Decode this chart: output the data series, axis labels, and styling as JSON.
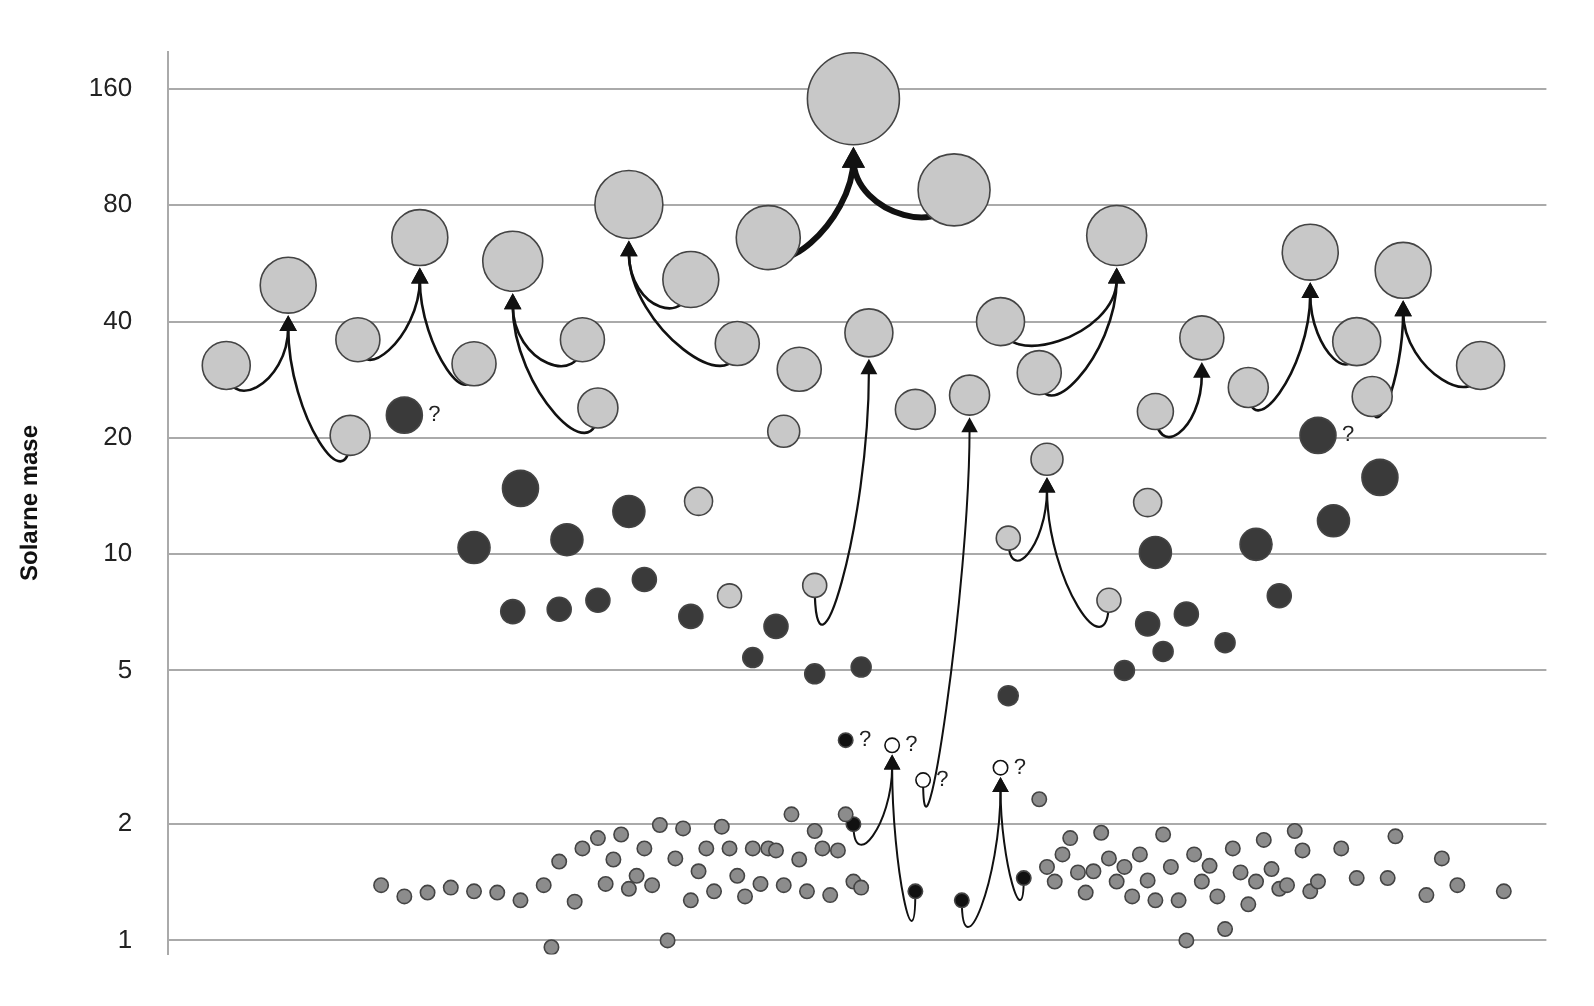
{
  "chart_data": {
    "type": "bubble",
    "ylabel": "Solarne mase",
    "log": "y",
    "grid": "y",
    "legend": false,
    "tick_labels": "y",
    "marker": "circle",
    "ylim": [
      0.92,
      200
    ],
    "yticks": [
      1,
      2,
      5,
      10,
      20,
      40,
      80,
      160
    ],
    "categories": [
      null,
      null,
      null,
      null,
      null,
      null,
      null,
      null,
      null,
      null,
      null,
      null,
      null,
      null,
      null,
      null,
      null,
      null,
      null,
      null,
      null,
      null,
      null,
      null,
      null,
      null,
      null,
      null,
      null,
      null,
      null,
      null,
      null,
      null,
      null,
      null,
      null,
      null,
      null,
      null,
      null,
      null,
      null,
      null,
      null,
      null,
      null,
      null,
      null,
      null,
      null,
      null,
      null,
      null,
      null,
      null,
      null,
      null,
      null,
      null,
      null,
      null,
      null,
      null,
      null,
      null,
      null,
      null,
      null,
      null,
      null,
      null,
      null,
      null,
      null,
      null,
      null,
      null,
      null,
      null,
      null,
      null,
      null,
      null,
      null,
      null,
      null,
      null,
      null,
      null,
      null,
      null,
      null,
      null,
      null,
      null,
      null,
      null,
      null,
      null,
      null,
      null,
      null,
      null,
      null,
      null,
      null,
      null,
      null,
      null,
      null,
      null,
      null,
      null,
      null,
      null,
      null,
      null,
      null,
      null,
      null,
      null,
      null,
      null,
      null,
      null,
      null,
      null,
      null,
      null,
      null,
      null,
      null,
      null,
      null,
      null,
      null,
      null,
      null,
      null,
      null,
      null,
      null,
      null,
      null,
      null,
      null,
      null,
      null,
      null,
      null,
      null,
      null,
      null,
      null,
      null,
      null,
      null,
      null,
      null,
      null,
      null,
      null,
      null,
      null,
      null,
      null,
      null,
      null,
      null,
      null,
      null,
      null,
      null,
      null,
      null,
      null,
      null
    ],
    "series": [
      {
        "color": "#c8c8c8",
        "values": [
          null,
          null,
          null,
          null,
          null,
          null,
          null,
          30.8,
          null,
          null,
          null,
          null,
          null,
          null,
          null,
          49.7,
          null,
          null,
          null,
          null,
          null,
          null,
          null,
          20.3,
          35.9,
          null,
          null,
          null,
          null,
          null,
          null,
          null,
          66,
          null,
          null,
          null,
          null,
          null,
          null,
          31.1,
          null,
          null,
          null,
          null,
          57.3,
          null,
          null,
          null,
          null,
          null,
          null,
          null,
          null,
          35.9,
          null,
          23.9,
          null,
          null,
          null,
          80.4,
          null,
          null,
          null,
          null,
          null,
          null,
          null,
          51.4,
          13.7,
          null,
          null,
          null,
          7.8,
          35.1,
          null,
          null,
          null,
          66,
          null,
          20.8,
          null,
          30.1,
          null,
          8.3,
          null,
          null,
          null,
          null,
          151,
          null,
          37.4,
          null,
          null,
          null,
          null,
          null,
          23.7,
          null,
          null,
          null,
          null,
          87.7,
          null,
          25.8,
          null,
          null,
          null,
          40,
          11,
          null,
          null,
          null,
          29.5,
          17.6,
          null,
          null,
          null,
          null,
          null,
          null,
          null,
          7.6,
          66.8,
          null,
          null,
          null,
          13.6,
          23.4,
          null,
          null,
          null,
          null,
          null,
          36.3,
          null,
          null,
          null,
          null,
          null,
          27,
          null,
          null,
          null,
          null,
          null,
          null,
          null,
          60.5,
          null,
          null,
          null,
          null,
          null,
          35.5,
          null,
          25.6,
          null,
          null,
          null,
          54.3,
          null,
          null,
          null,
          null,
          null,
          null,
          null,
          null,
          null,
          30.8,
          null,
          null,
          null,
          null,
          null,
          null,
          null,
          null
        ],
        "sizes": [
          null,
          null,
          null,
          null,
          null,
          null,
          null,
          0.272,
          null,
          null,
          null,
          null,
          null,
          null,
          null,
          0.37,
          null,
          null,
          null,
          null,
          null,
          null,
          null,
          0.189,
          0.229,
          null,
          null,
          null,
          null,
          null,
          null,
          null,
          0.37,
          null,
          null,
          null,
          null,
          null,
          null,
          0.229,
          null,
          null,
          null,
          null,
          0.425,
          null,
          null,
          null,
          null,
          null,
          null,
          null,
          null,
          0.229,
          null,
          0.189,
          null,
          null,
          null,
          0.546,
          null,
          null,
          null,
          null,
          null,
          null,
          null,
          0.37,
          0.093,
          null,
          null,
          null,
          0.068,
          0.229,
          null,
          null,
          null,
          0.484,
          null,
          0.121,
          null,
          0.229,
          null,
          0.068,
          null,
          null,
          null,
          null,
          1,
          null,
          0.272,
          null,
          null,
          null,
          null,
          null,
          0.189,
          null,
          null,
          null,
          null,
          0.612,
          null,
          0.189,
          null,
          null,
          null,
          0.272,
          0.068,
          null,
          null,
          null,
          0.229,
          0.121,
          null,
          null,
          null,
          null,
          null,
          null,
          null,
          0.068,
          0.425,
          null,
          null,
          null,
          0.093,
          0.153,
          null,
          null,
          null,
          null,
          null,
          0.229,
          null,
          null,
          null,
          null,
          null,
          0.189,
          null,
          null,
          null,
          null,
          null,
          null,
          null,
          0.37,
          null,
          null,
          null,
          null,
          null,
          0.272,
          null,
          0.189,
          null,
          null,
          null,
          0.37,
          null,
          null,
          null,
          null,
          null,
          null,
          null,
          null,
          null,
          0.272,
          null,
          null,
          null,
          null,
          null,
          null,
          null,
          null
        ]
      },
      {
        "color": "#3a3a3a",
        "values": [
          null,
          null,
          null,
          null,
          null,
          null,
          null,
          null,
          null,
          null,
          null,
          null,
          null,
          null,
          null,
          null,
          null,
          null,
          null,
          null,
          null,
          null,
          null,
          null,
          null,
          null,
          null,
          null,
          null,
          null,
          22.9,
          null,
          null,
          null,
          null,
          null,
          null,
          null,
          null,
          10.4,
          null,
          null,
          null,
          null,
          7.1,
          14.8,
          null,
          null,
          null,
          null,
          7.2,
          10.9,
          null,
          null,
          null,
          7.6,
          null,
          null,
          null,
          12.9,
          null,
          8.6,
          null,
          null,
          null,
          null,
          null,
          6.9,
          null,
          null,
          null,
          null,
          null,
          null,
          null,
          5.4,
          null,
          null,
          6.5,
          null,
          null,
          null,
          null,
          4.9,
          null,
          null,
          null,
          null,
          null,
          5.1,
          null,
          null,
          null,
          null,
          null,
          null,
          null,
          null,
          null,
          null,
          null,
          null,
          null,
          null,
          null,
          null,
          null,
          null,
          4.3,
          null,
          null,
          null,
          null,
          null,
          null,
          null,
          null,
          null,
          null,
          null,
          null,
          null,
          null,
          5,
          null,
          null,
          6.6,
          10.1,
          5.6,
          null,
          null,
          7,
          null,
          null,
          null,
          null,
          5.9,
          null,
          null,
          null,
          10.6,
          null,
          null,
          7.8,
          null,
          null,
          null,
          null,
          20.3,
          null,
          12.2,
          null,
          null,
          null,
          null,
          null,
          15.8,
          null,
          null,
          null,
          null,
          null,
          null,
          null,
          null,
          null,
          null,
          null,
          null,
          null,
          null,
          null,
          null,
          null,
          null,
          null,
          null,
          null
        ],
        "sizes": [
          null,
          null,
          null,
          null,
          null,
          null,
          null,
          null,
          null,
          null,
          null,
          null,
          null,
          null,
          null,
          null,
          null,
          null,
          null,
          null,
          null,
          null,
          null,
          null,
          null,
          null,
          null,
          null,
          null,
          null,
          0.153,
          null,
          null,
          null,
          null,
          null,
          null,
          null,
          null,
          0.121,
          null,
          null,
          null,
          null,
          0.068,
          0.153,
          null,
          null,
          null,
          null,
          0.068,
          0.121,
          null,
          null,
          null,
          0.068,
          null,
          null,
          null,
          0.121,
          null,
          0.068,
          null,
          null,
          null,
          null,
          null,
          0.068,
          null,
          null,
          null,
          null,
          null,
          null,
          null,
          0.047,
          null,
          null,
          0.068,
          null,
          null,
          null,
          null,
          0.047,
          null,
          null,
          null,
          null,
          null,
          0.047,
          null,
          null,
          null,
          null,
          null,
          null,
          null,
          null,
          null,
          null,
          null,
          null,
          null,
          null,
          null,
          null,
          null,
          null,
          0.047,
          null,
          null,
          null,
          null,
          null,
          null,
          null,
          null,
          null,
          null,
          null,
          null,
          null,
          null,
          0.047,
          null,
          null,
          0.068,
          0.121,
          0.047,
          null,
          null,
          0.068,
          null,
          null,
          null,
          null,
          0.047,
          null,
          null,
          null,
          0.121,
          null,
          null,
          0.068,
          null,
          null,
          null,
          null,
          0.153,
          null,
          0.121,
          null,
          null,
          null,
          null,
          null,
          0.153,
          null,
          null,
          null,
          null,
          null,
          null,
          null,
          null,
          null,
          null,
          null,
          null,
          null,
          null,
          null,
          null,
          null,
          null,
          null,
          null,
          null
        ],
        "value_labels": [
          null,
          null,
          null,
          null,
          null,
          null,
          null,
          null,
          null,
          null,
          null,
          null,
          null,
          null,
          null,
          null,
          null,
          null,
          null,
          null,
          null,
          null,
          null,
          null,
          null,
          null,
          null,
          null,
          null,
          null,
          "?",
          null,
          null,
          null,
          null,
          null,
          null,
          null,
          null,
          null,
          null,
          null,
          null,
          null,
          null,
          null,
          null,
          null,
          null,
          null,
          null,
          null,
          null,
          null,
          null,
          null,
          null,
          null,
          null,
          null,
          null,
          null,
          null,
          null,
          null,
          null,
          null,
          null,
          null,
          null,
          null,
          null,
          null,
          null,
          null,
          null,
          null,
          null,
          null,
          null,
          null,
          null,
          null,
          null,
          null,
          null,
          null,
          null,
          null,
          null,
          null,
          null,
          null,
          null,
          null,
          null,
          null,
          null,
          null,
          null,
          null,
          null,
          null,
          null,
          null,
          null,
          null,
          null,
          null,
          null,
          null,
          null,
          null,
          null,
          null,
          null,
          null,
          null,
          null,
          null,
          null,
          null,
          null,
          null,
          null,
          null,
          null,
          null,
          null,
          null,
          null,
          null,
          null,
          null,
          null,
          null,
          null,
          null,
          null,
          null,
          null,
          null,
          null,
          null,
          null,
          null,
          null,
          null,
          "?",
          null,
          null,
          null,
          null,
          null,
          null,
          null,
          null,
          null,
          null,
          null,
          null,
          null,
          null,
          null,
          null,
          null,
          null,
          null,
          null,
          null,
          null,
          null,
          null,
          null,
          null,
          null,
          null,
          null
        ]
      },
      {
        "type": "scatter",
        "color": "#8c8c8c",
        "values": [
          null,
          null,
          null,
          null,
          null,
          null,
          null,
          null,
          null,
          null,
          null,
          null,
          null,
          null,
          null,
          null,
          null,
          null,
          null,
          null,
          null,
          null,
          null,
          null,
          null,
          null,
          null,
          1.39,
          null,
          null,
          1.3,
          null,
          null,
          1.33,
          null,
          null,
          1.37,
          null,
          null,
          1.34,
          null,
          null,
          1.33,
          null,
          null,
          1.27,
          null,
          null,
          1.39,
          0.96,
          1.6,
          null,
          1.26,
          1.73,
          null,
          1.84,
          1.4,
          1.62,
          1.88,
          1.36,
          1.47,
          1.73,
          1.39,
          1.99,
          1,
          1.63,
          1.95,
          1.27,
          1.51,
          1.73,
          1.34,
          1.97,
          1.73,
          1.47,
          1.3,
          1.73,
          1.4,
          1.73,
          1.71,
          1.39,
          2.12,
          1.62,
          1.34,
          1.92,
          1.73,
          1.31,
          1.71,
          2.12,
          1.42,
          1.37,
          null,
          null,
          null,
          null,
          null,
          null,
          null,
          null,
          null,
          null,
          null,
          null,
          null,
          null,
          null,
          null,
          null,
          null,
          null,
          null,
          null,
          null,
          2.32,
          1.55,
          1.42,
          1.67,
          1.84,
          1.5,
          1.33,
          1.51,
          1.9,
          1.63,
          1.42,
          1.55,
          1.3,
          1.67,
          1.43,
          1.27,
          1.88,
          1.55,
          1.27,
          1,
          1.67,
          1.42,
          1.56,
          1.3,
          1.07,
          1.73,
          1.5,
          1.24,
          1.42,
          1.82,
          1.53,
          1.36,
          1.39,
          1.92,
          1.71,
          1.34,
          1.42,
          null,
          null,
          1.73,
          null,
          1.45,
          null,
          null,
          null,
          1.45,
          1.86,
          null,
          null,
          null,
          1.31,
          null,
          1.63,
          null,
          1.39,
          null,
          null,
          null,
          null,
          null,
          1.34,
          null,
          null,
          null,
          null,
          null
        ]
      },
      {
        "type": "scatter",
        "color": "#111111",
        "values": [
          null,
          null,
          null,
          null,
          null,
          null,
          null,
          null,
          null,
          null,
          null,
          null,
          null,
          null,
          null,
          null,
          null,
          null,
          null,
          null,
          null,
          null,
          null,
          null,
          null,
          null,
          null,
          null,
          null,
          null,
          null,
          null,
          null,
          null,
          null,
          null,
          null,
          null,
          null,
          null,
          null,
          null,
          null,
          null,
          null,
          null,
          null,
          null,
          null,
          null,
          null,
          null,
          null,
          null,
          null,
          null,
          null,
          null,
          null,
          null,
          null,
          null,
          null,
          null,
          null,
          null,
          null,
          null,
          null,
          null,
          null,
          null,
          null,
          null,
          null,
          null,
          null,
          null,
          null,
          null,
          null,
          null,
          null,
          null,
          null,
          null,
          null,
          3.3,
          2,
          null,
          null,
          null,
          null,
          null,
          null,
          null,
          1.34,
          null,
          null,
          null,
          null,
          null,
          1.27,
          null,
          null,
          null,
          null,
          null,
          null,
          null,
          1.45,
          null,
          null,
          null,
          null,
          null,
          null,
          null,
          null,
          null,
          null,
          null,
          null,
          null,
          null,
          null,
          null,
          null,
          null,
          null,
          null,
          null,
          null,
          null,
          null,
          null,
          null,
          null,
          null,
          null,
          null,
          null,
          null,
          null,
          null,
          null,
          null,
          null,
          null,
          null,
          null,
          null,
          null,
          null,
          null,
          null,
          null,
          null,
          null,
          null,
          null,
          null,
          null,
          null,
          null,
          null,
          null,
          null,
          null,
          null,
          null,
          null,
          null,
          null,
          null,
          null,
          null,
          null
        ],
        "value_labels": [
          null,
          null,
          null,
          null,
          null,
          null,
          null,
          null,
          null,
          null,
          null,
          null,
          null,
          null,
          null,
          null,
          null,
          null,
          null,
          null,
          null,
          null,
          null,
          null,
          null,
          null,
          null,
          null,
          null,
          null,
          null,
          null,
          null,
          null,
          null,
          null,
          null,
          null,
          null,
          null,
          null,
          null,
          null,
          null,
          null,
          null,
          null,
          null,
          null,
          null,
          null,
          null,
          null,
          null,
          null,
          null,
          null,
          null,
          null,
          null,
          null,
          null,
          null,
          null,
          null,
          null,
          null,
          null,
          null,
          null,
          null,
          null,
          null,
          null,
          null,
          null,
          null,
          null,
          null,
          null,
          null,
          null,
          null,
          null,
          null,
          null,
          null,
          "?",
          null,
          null,
          null,
          null,
          null,
          null,
          null,
          null,
          null,
          null,
          null,
          null,
          null,
          null,
          null,
          null,
          null,
          null,
          null,
          null,
          null,
          null,
          null,
          null,
          null,
          null,
          null,
          null,
          null,
          null,
          null,
          null,
          null,
          null,
          null,
          null,
          null,
          null,
          null,
          null,
          null,
          null,
          null,
          null,
          null,
          null,
          null,
          null,
          null,
          null,
          null,
          null,
          null,
          null,
          null,
          null,
          null,
          null,
          null,
          null,
          null,
          null,
          null,
          null,
          null,
          null,
          null,
          null,
          null,
          null,
          null,
          null,
          null,
          null,
          null,
          null,
          null,
          null,
          null,
          null,
          null,
          null,
          null,
          null,
          null,
          null,
          null,
          null,
          null,
          null
        ]
      },
      {
        "type": "scatter",
        "color": "#ffffff",
        "values": [
          null,
          null,
          null,
          null,
          null,
          null,
          null,
          null,
          null,
          null,
          null,
          null,
          null,
          null,
          null,
          null,
          null,
          null,
          null,
          null,
          null,
          null,
          null,
          null,
          null,
          null,
          null,
          null,
          null,
          null,
          null,
          null,
          null,
          null,
          null,
          null,
          null,
          null,
          null,
          null,
          null,
          null,
          null,
          null,
          null,
          null,
          null,
          null,
          null,
          null,
          null,
          null,
          null,
          null,
          null,
          null,
          null,
          null,
          null,
          null,
          null,
          null,
          null,
          null,
          null,
          null,
          null,
          null,
          null,
          null,
          null,
          null,
          null,
          null,
          null,
          null,
          null,
          null,
          null,
          null,
          null,
          null,
          null,
          null,
          null,
          null,
          null,
          null,
          null,
          null,
          null,
          null,
          null,
          3.2,
          null,
          null,
          null,
          2.6,
          null,
          null,
          null,
          null,
          null,
          null,
          null,
          null,
          null,
          2.8,
          null,
          null,
          null,
          null,
          null,
          null,
          null,
          null,
          null,
          null,
          null,
          null,
          null,
          null,
          null,
          null,
          null,
          null,
          null,
          null,
          null,
          null,
          null,
          null,
          null,
          null,
          null,
          null,
          null,
          null,
          null,
          null,
          null,
          null,
          null,
          null,
          null,
          null,
          null,
          null,
          null,
          null,
          null,
          null,
          null,
          null,
          null,
          null,
          null,
          null,
          null,
          null,
          null,
          null,
          null,
          null,
          null,
          null,
          null,
          null,
          null,
          null,
          null,
          null,
          null,
          null,
          null,
          null,
          null,
          null
        ],
        "value_labels": [
          null,
          null,
          null,
          null,
          null,
          null,
          null,
          null,
          null,
          null,
          null,
          null,
          null,
          null,
          null,
          null,
          null,
          null,
          null,
          null,
          null,
          null,
          null,
          null,
          null,
          null,
          null,
          null,
          null,
          null,
          null,
          null,
          null,
          null,
          null,
          null,
          null,
          null,
          null,
          null,
          null,
          null,
          null,
          null,
          null,
          null,
          null,
          null,
          null,
          null,
          null,
          null,
          null,
          null,
          null,
          null,
          null,
          null,
          null,
          null,
          null,
          null,
          null,
          null,
          null,
          null,
          null,
          null,
          null,
          null,
          null,
          null,
          null,
          null,
          null,
          null,
          null,
          null,
          null,
          null,
          null,
          null,
          null,
          null,
          null,
          null,
          null,
          null,
          null,
          null,
          null,
          null,
          null,
          "?",
          null,
          null,
          null,
          "?",
          null,
          null,
          null,
          null,
          null,
          null,
          null,
          null,
          null,
          "?",
          null,
          null,
          null,
          null,
          null,
          null,
          null,
          null,
          null,
          null,
          null,
          null,
          null,
          null,
          null,
          null,
          null,
          null,
          null,
          null,
          null,
          null,
          null,
          null,
          null,
          null,
          null,
          null,
          null,
          null,
          null,
          null,
          null,
          null,
          null,
          null,
          null,
          null,
          null,
          null,
          null,
          null,
          null,
          null,
          null,
          null,
          null,
          null,
          null,
          null,
          null,
          null,
          null,
          null,
          null,
          null,
          null,
          null,
          null,
          null,
          null,
          null,
          null,
          null,
          null,
          null,
          null,
          null,
          null,
          null
        ]
      }
    ]
  }
}
